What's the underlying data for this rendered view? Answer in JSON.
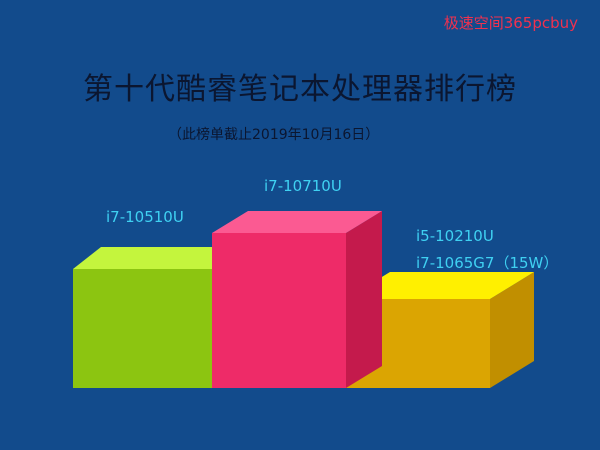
{
  "watermark": "极速空间365pcbuy",
  "title": "第十代酷睿笔记本处理器排行榜",
  "subtitle": "（此榜单截止2019年10月16日）",
  "chart_data": {
    "type": "bar",
    "title": "第十代酷睿笔记本处理器排行榜",
    "subtitle": "（此榜单截止2019年10月16日）",
    "categories": [
      "i7-10510U",
      "i7-10710U",
      "i5-10210U / i7-1065G7（15W）"
    ],
    "label_lines": [
      [
        "i7-10510U"
      ],
      [
        "i7-10710U"
      ],
      [
        "i5-10210U",
        "i7-1065G7（15W）"
      ]
    ],
    "rank": [
      2,
      1,
      3
    ],
    "values": [
      2,
      3,
      1
    ],
    "colors": [
      {
        "front": "#8cc511",
        "top": "#c4f53d",
        "side": "#6e9a0c"
      },
      {
        "front": "#ee2b68",
        "top": "#fb5a92",
        "side": "#c41a4c"
      },
      {
        "front": "#dba502",
        "top": "#fff000",
        "side": "#c18f00"
      }
    ],
    "grid": false,
    "legend": "none"
  }
}
